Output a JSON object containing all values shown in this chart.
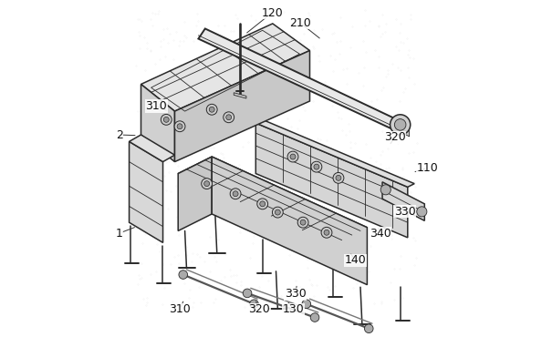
{
  "background_color": "#ffffff",
  "line_color": "#2a2a2a",
  "figsize": [
    6.05,
    3.7
  ],
  "dpi": 100,
  "label_fontsize": 9
}
